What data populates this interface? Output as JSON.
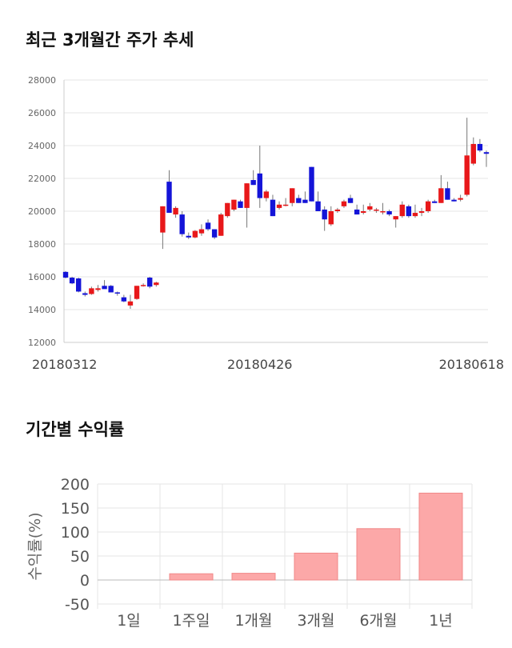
{
  "stock_section": {
    "title": "최근 3개월간 주가 추세"
  },
  "returns_section": {
    "title": "기간별 수익률"
  },
  "colors": {
    "up": "#e8181a",
    "down": "#1414d8",
    "bar": "#fca8a8",
    "bar_border": "#f08888",
    "grid": "#e6e6e6"
  },
  "chart_data": [
    {
      "type": "candlestick",
      "ylim": [
        12000,
        28000
      ],
      "y_ticks": [
        12000,
        14000,
        16000,
        18000,
        20000,
        22000,
        24000,
        26000,
        28000
      ],
      "x_tick_labels": [
        {
          "label": "20180312",
          "index": 0
        },
        {
          "label": "20180426",
          "index": 30
        },
        {
          "label": "20180618",
          "index": 64
        }
      ],
      "candles": [
        [
          16300,
          16350,
          15900,
          15950
        ],
        [
          15950,
          16000,
          15550,
          15600
        ],
        [
          15900,
          15950,
          15050,
          15100
        ],
        [
          15000,
          15100,
          14800,
          14900
        ],
        [
          14950,
          15400,
          14900,
          15300
        ],
        [
          15200,
          15500,
          15100,
          15300
        ],
        [
          15450,
          15800,
          15300,
          15250
        ],
        [
          15450,
          15500,
          15050,
          15050
        ],
        [
          15050,
          15100,
          14850,
          15000
        ],
        [
          14750,
          14900,
          14450,
          14500
        ],
        [
          14250,
          14900,
          14050,
          14500
        ],
        [
          14650,
          15450,
          14600,
          15450
        ],
        [
          15450,
          15600,
          15400,
          15500
        ],
        [
          15950,
          16000,
          15300,
          15400
        ],
        [
          15500,
          15700,
          15400,
          15650
        ],
        [
          18700,
          20300,
          17700,
          20300
        ],
        [
          21800,
          22500,
          19900,
          19900
        ],
        [
          19800,
          20300,
          19600,
          20200
        ],
        [
          19800,
          20000,
          18450,
          18600
        ],
        [
          18500,
          18700,
          18300,
          18400
        ],
        [
          18400,
          18850,
          18350,
          18800
        ],
        [
          18650,
          19200,
          18500,
          18900
        ],
        [
          19300,
          19500,
          18800,
          18900
        ],
        [
          18900,
          18900,
          18300,
          18400
        ],
        [
          18500,
          19900,
          18500,
          19800
        ],
        [
          19700,
          20500,
          19600,
          20500
        ],
        [
          20100,
          20700,
          20000,
          20700
        ],
        [
          20600,
          20700,
          20200,
          20200
        ],
        [
          20200,
          21700,
          19000,
          21700
        ],
        [
          21900,
          22500,
          21600,
          21600
        ],
        [
          22300,
          24000,
          20200,
          20800
        ],
        [
          20800,
          21300,
          20600,
          21200
        ],
        [
          20700,
          21000,
          19700,
          19700
        ],
        [
          20200,
          20600,
          20100,
          20400
        ],
        [
          20400,
          20800,
          20300,
          20400
        ],
        [
          20500,
          21400,
          20300,
          21400
        ],
        [
          20800,
          21000,
          20500,
          20500
        ],
        [
          20700,
          21200,
          20500,
          20500
        ],
        [
          22700,
          22700,
          20600,
          20600
        ],
        [
          20600,
          21200,
          20000,
          20000
        ],
        [
          20100,
          20300,
          18800,
          19500
        ],
        [
          19200,
          20300,
          19100,
          20000
        ],
        [
          20000,
          20200,
          19900,
          20100
        ],
        [
          20300,
          20700,
          20200,
          20600
        ],
        [
          20800,
          21000,
          20500,
          20500
        ],
        [
          20100,
          20400,
          19800,
          19800
        ],
        [
          19900,
          20400,
          19800,
          20000
        ],
        [
          20100,
          20500,
          20000,
          20300
        ],
        [
          20100,
          20200,
          19900,
          20100
        ],
        [
          20000,
          20500,
          19800,
          20000
        ],
        [
          20000,
          20100,
          19700,
          19800
        ],
        [
          19500,
          19700,
          19000,
          19700
        ],
        [
          19700,
          20600,
          19600,
          20400
        ],
        [
          20300,
          20400,
          19600,
          19700
        ],
        [
          19700,
          20400,
          19600,
          19900
        ],
        [
          19900,
          20200,
          19700,
          20000
        ],
        [
          20000,
          20700,
          19900,
          20600
        ],
        [
          20600,
          20700,
          20500,
          20500
        ],
        [
          20500,
          22200,
          20500,
          21400
        ],
        [
          21400,
          21800,
          20700,
          20700
        ],
        [
          20700,
          20800,
          20600,
          20600
        ],
        [
          20700,
          21000,
          20600,
          20800
        ],
        [
          21000,
          25700,
          20900,
          23400
        ],
        [
          22900,
          24500,
          22800,
          24100
        ],
        [
          24100,
          24400,
          23600,
          23700
        ],
        [
          23600,
          23700,
          22700,
          23500
        ]
      ]
    },
    {
      "type": "bar",
      "ylabel": "수익률(%)",
      "ylim": [
        -60,
        200
      ],
      "y_ticks": [
        -50,
        0,
        50,
        100,
        150,
        200
      ],
      "categories": [
        "1일",
        "1주일",
        "1개월",
        "3개월",
        "6개월",
        "1년"
      ],
      "values": [
        0,
        13,
        14,
        56,
        107,
        181
      ]
    }
  ]
}
